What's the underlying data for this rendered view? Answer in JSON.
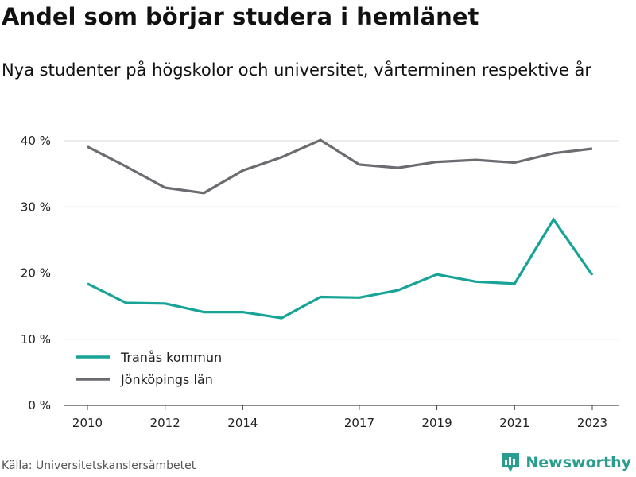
{
  "chart_data": {
    "type": "line",
    "title": "Andel som börjar studera i hemlänet",
    "subtitle": "Nya studenter på högskolor och universitet, vårterminen respektive år",
    "x": [
      2010,
      2011,
      2012,
      2013,
      2014,
      2015,
      2016,
      2017,
      2018,
      2019,
      2020,
      2021,
      2022,
      2023
    ],
    "x_tick_labels": [
      "2010",
      "2012",
      "2014",
      "2017",
      "2019",
      "2021",
      "2023"
    ],
    "x_tick_values": [
      2010,
      2012,
      2014,
      2017,
      2019,
      2021,
      2023
    ],
    "y_tick_labels": [
      "0 %",
      "10 %",
      "20 %",
      "30 %",
      "40 %"
    ],
    "y_tick_values": [
      0,
      10,
      20,
      30,
      40
    ],
    "ylim": [
      0,
      40
    ],
    "grid": true,
    "legend_position": "bottom-left",
    "series": [
      {
        "name": "Tranås kommun",
        "color": "#17a497",
        "values": [
          18.4,
          15.5,
          15.4,
          14.1,
          14.1,
          13.2,
          16.4,
          16.3,
          17.4,
          19.8,
          18.7,
          18.4,
          28.1,
          19.7
        ]
      },
      {
        "name": "Jönköpings län",
        "color": "#6b6b70",
        "values": [
          39.1,
          36.1,
          32.9,
          32.1,
          35.5,
          37.5,
          40.1,
          36.4,
          35.9,
          36.8,
          37.1,
          36.7,
          38.1,
          38.8
        ]
      }
    ]
  },
  "source": "Källa: Universitetskanslersämbetet",
  "brand": {
    "name": "Newsworthy",
    "icon": "bar-chart-icon",
    "color": "#2a9d8f"
  }
}
